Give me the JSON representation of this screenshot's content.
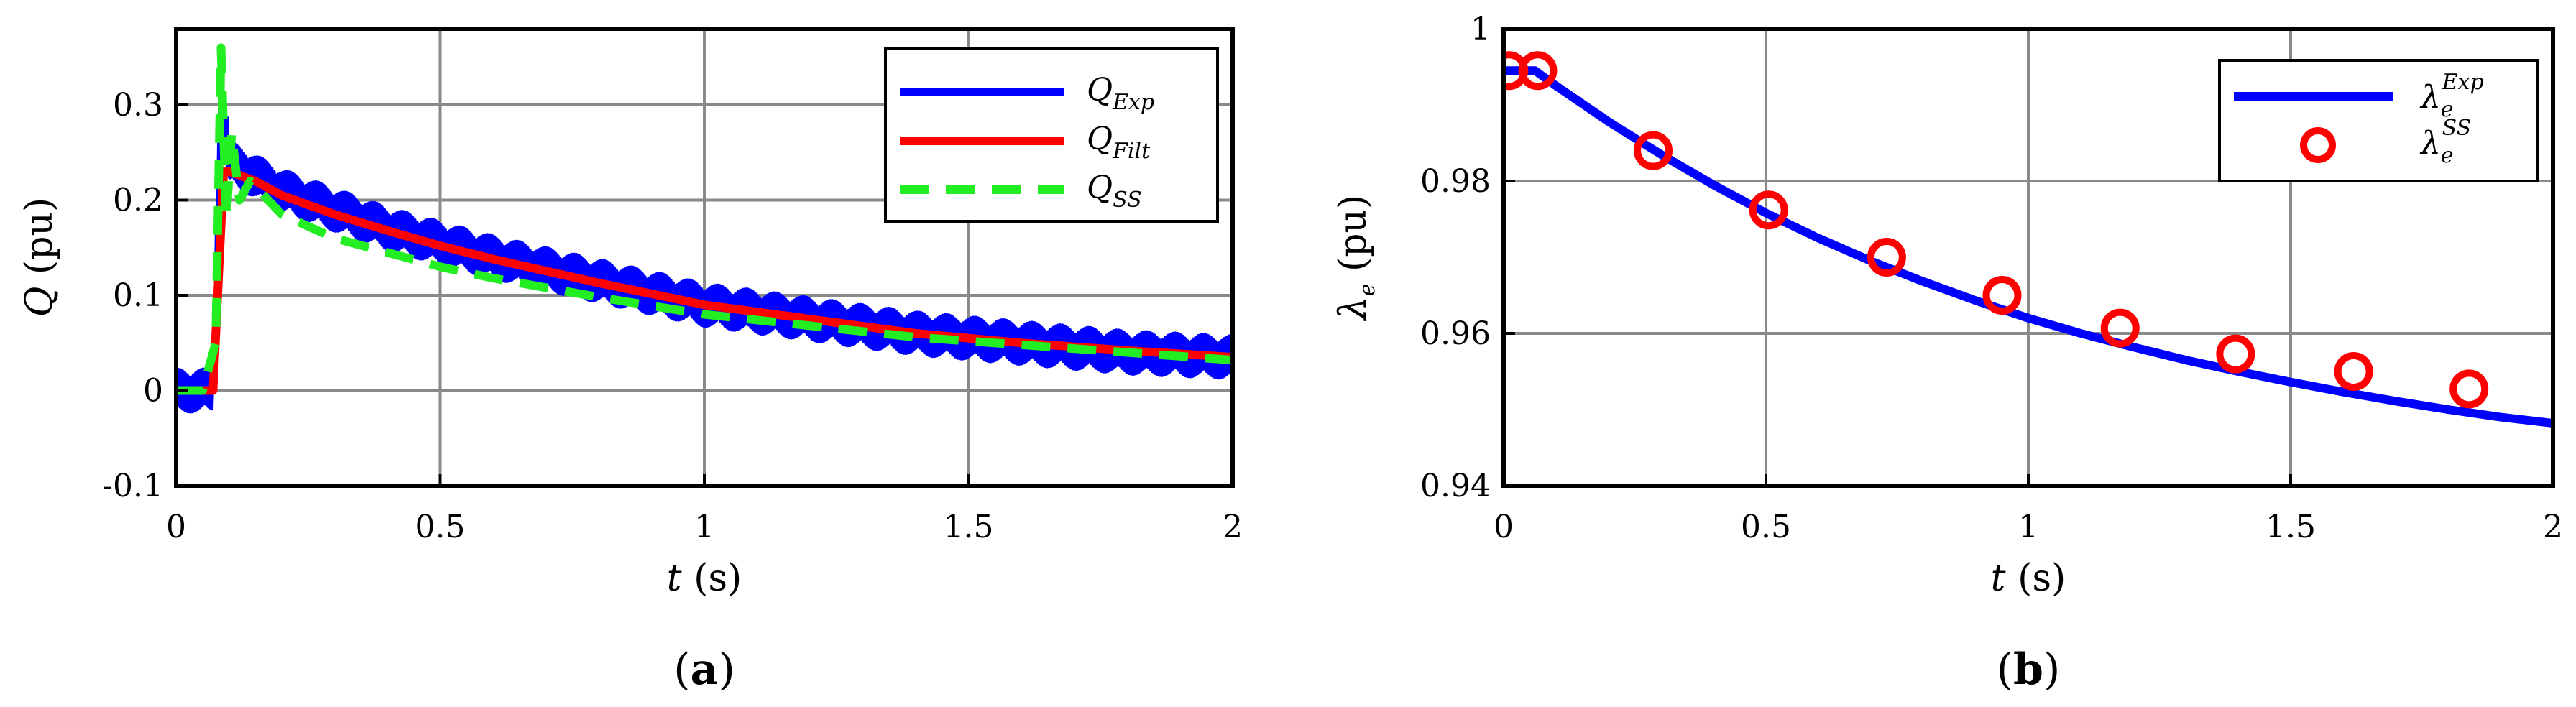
{
  "chart_data": [
    {
      "type": "line",
      "panel_label": "a",
      "xlabel": {
        "symbol": "t",
        "unit": "(s)"
      },
      "ylabel": {
        "symbol": "Q",
        "unit": "(pu)"
      },
      "xlim": [
        0,
        2
      ],
      "ylim": [
        -0.1,
        0.38
      ],
      "xticks": [
        "0",
        "0.5",
        "1",
        "1.5",
        "2"
      ],
      "xtick_values": [
        0,
        0.5,
        1,
        1.5,
        2
      ],
      "yticks": [
        "-0.1",
        "0",
        "0.1",
        "0.2",
        "0.3"
      ],
      "ytick_values": [
        -0.1,
        0,
        0.1,
        0.2,
        0.3
      ],
      "grid": true,
      "legend_position": "top-right",
      "series": [
        {
          "name": "Q_Exp",
          "label_main": "Q",
          "label_sub": "Exp",
          "color": "#0000ff",
          "style": "solid",
          "description": "noisy measured signal",
          "x": [
            0,
            0.07,
            0.085,
            0.1,
            0.15,
            0.2,
            0.3,
            0.4,
            0.5,
            0.6,
            0.8,
            1.0,
            1.2,
            1.4,
            1.6,
            1.8,
            2.0
          ],
          "y": [
            0,
            0,
            0.33,
            0.24,
            0.225,
            0.21,
            0.19,
            0.17,
            0.155,
            0.14,
            0.115,
            0.09,
            0.075,
            0.06,
            0.05,
            0.04,
            0.035
          ],
          "noise_amplitude": 0.022
        },
        {
          "name": "Q_Filt",
          "label_main": "Q",
          "label_sub": "Filt",
          "color": "#ff0000",
          "style": "solid",
          "x": [
            0,
            0.07,
            0.09,
            0.1,
            0.15,
            0.2,
            0.3,
            0.4,
            0.5,
            0.6,
            0.8,
            1.0,
            1.2,
            1.4,
            1.6,
            1.8,
            2.0
          ],
          "y": [
            0,
            0,
            0.23,
            0.23,
            0.22,
            0.205,
            0.185,
            0.168,
            0.152,
            0.138,
            0.113,
            0.09,
            0.075,
            0.06,
            0.05,
            0.042,
            0.035
          ]
        },
        {
          "name": "Q_SS",
          "label_main": "Q",
          "label_sub": "SS",
          "color": "#22ee22",
          "style": "dashed",
          "x": [
            0,
            0.05,
            0.075,
            0.085,
            0.095,
            0.105,
            0.12,
            0.14,
            0.2,
            0.3,
            0.4,
            0.5,
            0.6,
            0.8,
            1.0,
            1.2,
            1.4,
            1.6,
            1.8,
            2.0
          ],
          "y": [
            0,
            0,
            0.05,
            0.36,
            0.18,
            0.27,
            0.2,
            0.22,
            0.185,
            0.16,
            0.145,
            0.13,
            0.118,
            0.098,
            0.08,
            0.068,
            0.056,
            0.048,
            0.04,
            0.032
          ]
        }
      ]
    },
    {
      "type": "line",
      "panel_label": "b",
      "xlabel": {
        "symbol": "t",
        "unit": "(s)"
      },
      "ylabel": {
        "symbol": "λ",
        "sub": "e",
        "unit": "(pu)"
      },
      "xlim": [
        0,
        2
      ],
      "ylim": [
        0.94,
        1.0
      ],
      "xticks": [
        "0",
        "0.5",
        "1",
        "1.5",
        "2"
      ],
      "xtick_values": [
        0,
        0.5,
        1,
        1.5,
        2
      ],
      "yticks": [
        "0.94",
        "0.96",
        "0.98",
        "1"
      ],
      "ytick_values": [
        0.94,
        0.96,
        0.98,
        1.0
      ],
      "grid": true,
      "legend_position": "top-right",
      "series": [
        {
          "name": "lambda_e_Exp",
          "label_main": "λ",
          "label_sub": "e",
          "label_sup": "Exp",
          "color": "#0000ff",
          "style": "solid",
          "x": [
            0,
            0.06,
            0.1,
            0.2,
            0.3,
            0.4,
            0.5,
            0.6,
            0.7,
            0.8,
            0.9,
            1.0,
            1.1,
            1.2,
            1.3,
            1.4,
            1.5,
            1.6,
            1.7,
            1.8,
            1.9,
            2.0
          ],
          "y": [
            0.9945,
            0.9945,
            0.9925,
            0.9878,
            0.9835,
            0.9795,
            0.9758,
            0.9725,
            0.9695,
            0.9668,
            0.9643,
            0.962,
            0.96,
            0.9582,
            0.9565,
            0.955,
            0.9536,
            0.9523,
            0.9511,
            0.95,
            0.949,
            0.9482
          ]
        },
        {
          "name": "lambda_e_SS",
          "label_main": "λ",
          "label_sub": "e",
          "label_sup": "SS",
          "color": "#ff0000",
          "style": "markers-circle",
          "x": [
            0.01,
            0.065,
            0.285,
            0.505,
            0.73,
            0.95,
            1.175,
            1.395,
            1.62,
            1.84
          ],
          "y": [
            0.9945,
            0.9945,
            0.984,
            0.9762,
            0.97,
            0.965,
            0.9607,
            0.9573,
            0.955,
            0.9527
          ]
        }
      ]
    }
  ]
}
